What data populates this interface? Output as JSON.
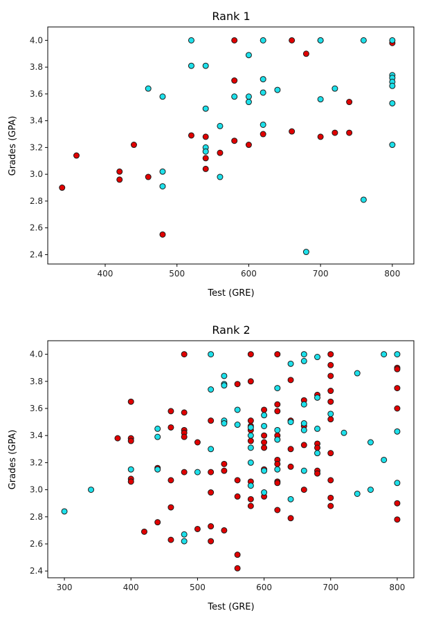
{
  "chart_data": [
    {
      "type": "scatter",
      "title": "Rank 1",
      "xlabel": "Test (GRE)",
      "ylabel": "Grades (GPA)",
      "xlim": [
        320,
        830
      ],
      "ylim": [
        2.33,
        4.1
      ],
      "xticks": [
        "400",
        "500",
        "600",
        "700",
        "800"
      ],
      "yticks": [
        "2.4",
        "2.6",
        "2.8",
        "3.0",
        "3.2",
        "3.4",
        "3.6",
        "3.8",
        "4.0"
      ],
      "grid": false,
      "legend": "none",
      "series": [
        {
          "color": "#e00000",
          "points": [
            [
              340,
              2.9
            ],
            [
              360,
              3.14
            ],
            [
              420,
              3.02
            ],
            [
              420,
              2.96
            ],
            [
              440,
              3.22
            ],
            [
              460,
              2.98
            ],
            [
              480,
              2.55
            ],
            [
              520,
              3.29
            ],
            [
              540,
              3.28
            ],
            [
              540,
              3.12
            ],
            [
              540,
              3.04
            ],
            [
              560,
              3.16
            ],
            [
              580,
              4.0
            ],
            [
              580,
              3.7
            ],
            [
              580,
              3.25
            ],
            [
              600,
              3.22
            ],
            [
              620,
              3.3
            ],
            [
              660,
              4.0
            ],
            [
              660,
              3.32
            ],
            [
              680,
              3.9
            ],
            [
              700,
              3.28
            ],
            [
              720,
              3.31
            ],
            [
              740,
              3.54
            ],
            [
              740,
              3.31
            ],
            [
              800,
              3.98
            ]
          ]
        },
        {
          "color": "#1ee0ea",
          "points": [
            [
              460,
              3.64
            ],
            [
              480,
              3.58
            ],
            [
              480,
              3.02
            ],
            [
              480,
              2.91
            ],
            [
              520,
              4.0
            ],
            [
              520,
              3.81
            ],
            [
              540,
              3.81
            ],
            [
              540,
              3.49
            ],
            [
              540,
              3.2
            ],
            [
              540,
              3.17
            ],
            [
              560,
              3.36
            ],
            [
              560,
              2.98
            ],
            [
              580,
              3.58
            ],
            [
              600,
              3.89
            ],
            [
              600,
              3.58
            ],
            [
              600,
              3.54
            ],
            [
              620,
              4.0
            ],
            [
              620,
              3.71
            ],
            [
              620,
              3.61
            ],
            [
              620,
              3.37
            ],
            [
              640,
              3.63
            ],
            [
              680,
              2.42
            ],
            [
              700,
              4.0
            ],
            [
              700,
              4.0
            ],
            [
              700,
              3.56
            ],
            [
              720,
              3.64
            ],
            [
              760,
              4.0
            ],
            [
              760,
              2.81
            ],
            [
              800,
              4.0
            ],
            [
              800,
              3.74
            ],
            [
              800,
              3.72
            ],
            [
              800,
              3.69
            ],
            [
              800,
              3.66
            ],
            [
              800,
              3.53
            ],
            [
              800,
              3.22
            ]
          ]
        }
      ]
    },
    {
      "type": "scatter",
      "title": "Rank 2",
      "xlabel": "Test (GRE)",
      "ylabel": "Grades (GPA)",
      "xlim": [
        275,
        825
      ],
      "ylim": [
        2.35,
        4.1
      ],
      "xticks": [
        "300",
        "400",
        "500",
        "600",
        "700",
        "800"
      ],
      "yticks": [
        "2.4",
        "2.6",
        "2.8",
        "3.0",
        "3.2",
        "3.4",
        "3.6",
        "3.8",
        "4.0"
      ],
      "grid": false,
      "legend": "none",
      "series": [
        {
          "color": "#e00000",
          "points": [
            [
              380,
              3.38
            ],
            [
              400,
              3.65
            ],
            [
              400,
              3.38
            ],
            [
              400,
              3.36
            ],
            [
              400,
              3.08
            ],
            [
              400,
              3.06
            ],
            [
              420,
              2.69
            ],
            [
              440,
              3.16
            ],
            [
              440,
              2.76
            ],
            [
              460,
              3.58
            ],
            [
              460,
              3.46
            ],
            [
              460,
              3.07
            ],
            [
              460,
              2.87
            ],
            [
              460,
              2.63
            ],
            [
              480,
              4.0
            ],
            [
              480,
              3.57
            ],
            [
              480,
              3.44
            ],
            [
              480,
              3.42
            ],
            [
              480,
              3.39
            ],
            [
              480,
              3.13
            ],
            [
              500,
              3.35
            ],
            [
              500,
              2.71
            ],
            [
              520,
              3.51
            ],
            [
              520,
              3.13
            ],
            [
              520,
              2.98
            ],
            [
              520,
              2.73
            ],
            [
              520,
              2.62
            ],
            [
              540,
              3.5
            ],
            [
              540,
              3.19
            ],
            [
              540,
              3.14
            ],
            [
              540,
              2.7
            ],
            [
              560,
              3.78
            ],
            [
              560,
              3.07
            ],
            [
              560,
              2.95
            ],
            [
              560,
              2.52
            ],
            [
              560,
              2.42
            ],
            [
              580,
              4.0
            ],
            [
              580,
              3.8
            ],
            [
              580,
              3.51
            ],
            [
              580,
              3.47
            ],
            [
              580,
              3.44
            ],
            [
              580,
              3.36
            ],
            [
              580,
              3.06
            ],
            [
              580,
              2.93
            ],
            [
              580,
              2.88
            ],
            [
              600,
              3.59
            ],
            [
              600,
              3.4
            ],
            [
              600,
              3.35
            ],
            [
              600,
              3.31
            ],
            [
              600,
              3.15
            ],
            [
              600,
              2.95
            ],
            [
              620,
              4.0
            ],
            [
              620,
              3.63
            ],
            [
              620,
              3.58
            ],
            [
              620,
              3.4
            ],
            [
              620,
              3.22
            ],
            [
              620,
              3.19
            ],
            [
              620,
              3.06
            ],
            [
              620,
              3.05
            ],
            [
              620,
              2.85
            ],
            [
              640,
              3.81
            ],
            [
              640,
              3.51
            ],
            [
              640,
              3.3
            ],
            [
              640,
              3.17
            ],
            [
              640,
              2.79
            ],
            [
              660,
              3.66
            ],
            [
              660,
              3.47
            ],
            [
              660,
              3.33
            ],
            [
              660,
              3.0
            ],
            [
              680,
              3.7
            ],
            [
              680,
              3.34
            ],
            [
              680,
              3.31
            ],
            [
              680,
              3.14
            ],
            [
              680,
              3.12
            ],
            [
              700,
              4.0
            ],
            [
              700,
              3.92
            ],
            [
              700,
              3.84
            ],
            [
              700,
              3.73
            ],
            [
              700,
              3.65
            ],
            [
              700,
              3.52
            ],
            [
              700,
              3.27
            ],
            [
              700,
              3.07
            ],
            [
              700,
              2.94
            ],
            [
              700,
              2.88
            ],
            [
              800,
              3.9
            ],
            [
              800,
              3.89
            ],
            [
              800,
              3.75
            ],
            [
              800,
              3.6
            ],
            [
              800,
              2.9
            ],
            [
              800,
              2.78
            ]
          ]
        },
        {
          "color": "#1ee0ea",
          "points": [
            [
              300,
              2.84
            ],
            [
              340,
              3.0
            ],
            [
              400,
              3.15
            ],
            [
              440,
              3.45
            ],
            [
              440,
              3.39
            ],
            [
              440,
              3.15
            ],
            [
              480,
              2.67
            ],
            [
              480,
              2.62
            ],
            [
              500,
              3.13
            ],
            [
              520,
              4.0
            ],
            [
              520,
              3.74
            ],
            [
              520,
              3.3
            ],
            [
              540,
              3.84
            ],
            [
              540,
              3.78
            ],
            [
              540,
              3.77
            ],
            [
              540,
              3.51
            ],
            [
              540,
              3.49
            ],
            [
              560,
              3.59
            ],
            [
              560,
              3.48
            ],
            [
              580,
              3.46
            ],
            [
              580,
              3.4
            ],
            [
              580,
              3.31
            ],
            [
              580,
              3.2
            ],
            [
              580,
              3.03
            ],
            [
              600,
              3.55
            ],
            [
              600,
              3.47
            ],
            [
              600,
              3.14
            ],
            [
              600,
              2.98
            ],
            [
              620,
              3.75
            ],
            [
              620,
              3.44
            ],
            [
              620,
              3.37
            ],
            [
              620,
              3.15
            ],
            [
              640,
              3.93
            ],
            [
              640,
              3.5
            ],
            [
              640,
              2.93
            ],
            [
              660,
              4.0
            ],
            [
              660,
              3.95
            ],
            [
              660,
              3.63
            ],
            [
              660,
              3.49
            ],
            [
              660,
              3.44
            ],
            [
              660,
              3.14
            ],
            [
              680,
              3.98
            ],
            [
              680,
              3.68
            ],
            [
              680,
              3.45
            ],
            [
              680,
              3.27
            ],
            [
              700,
              3.56
            ],
            [
              720,
              3.42
            ],
            [
              740,
              3.86
            ],
            [
              740,
              2.97
            ],
            [
              760,
              3.35
            ],
            [
              760,
              3.0
            ],
            [
              780,
              4.0
            ],
            [
              780,
              3.22
            ],
            [
              800,
              4.0
            ],
            [
              800,
              3.43
            ],
            [
              800,
              3.05
            ]
          ]
        }
      ]
    }
  ]
}
